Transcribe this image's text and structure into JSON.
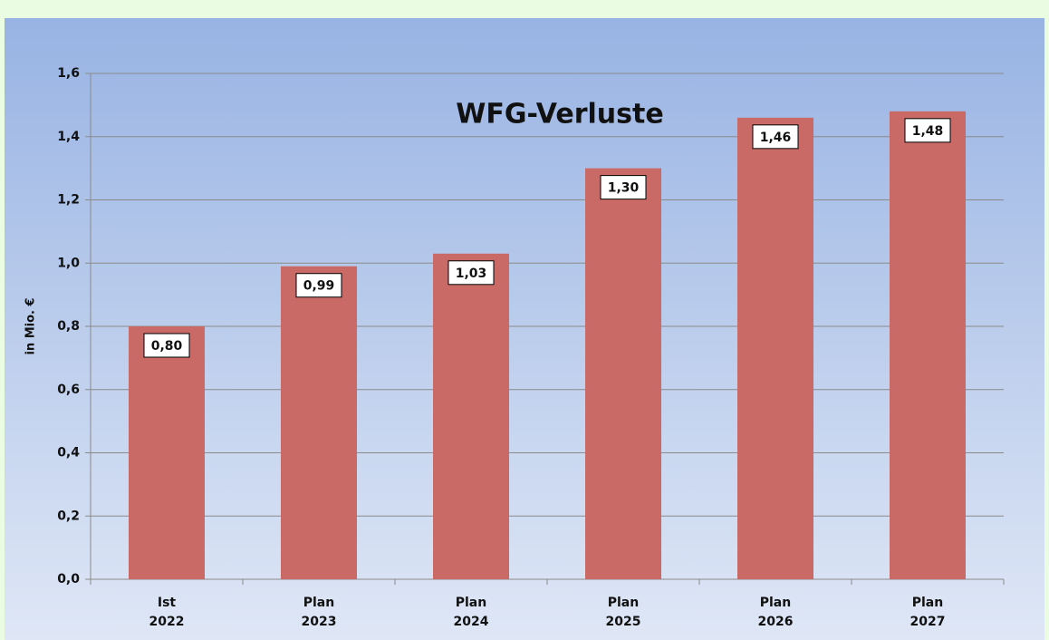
{
  "chart_data": {
    "type": "bar",
    "title": "WFG-Verluste",
    "y_label": "in Mio. €",
    "categories": [
      "Ist 2022",
      "Plan 2023",
      "Plan 2024",
      "Plan 2025",
      "Plan 2026",
      "Plan 2027"
    ],
    "values": [
      0.8,
      0.99,
      1.03,
      1.3,
      1.46,
      1.48
    ],
    "value_labels": [
      "0,80",
      "0,99",
      "1,03",
      "1,30",
      "1,46",
      "1,48"
    ],
    "color": "#c96a67",
    "ylim": [
      0,
      1.6
    ],
    "yticks": [
      {
        "value": 0,
        "label": "0,0"
      },
      {
        "value": 0.2,
        "label": "0,2"
      },
      {
        "value": 0.4,
        "label": "0,4"
      },
      {
        "value": 0.6,
        "label": "0,6"
      },
      {
        "value": 0.8,
        "label": "0,8"
      },
      {
        "value": 1.0,
        "label": "1,0"
      },
      {
        "value": 1.2,
        "label": "1,2"
      },
      {
        "value": 1.4,
        "label": "1,4"
      },
      {
        "value": 1.6,
        "label": "1,6"
      }
    ],
    "grid": true
  }
}
